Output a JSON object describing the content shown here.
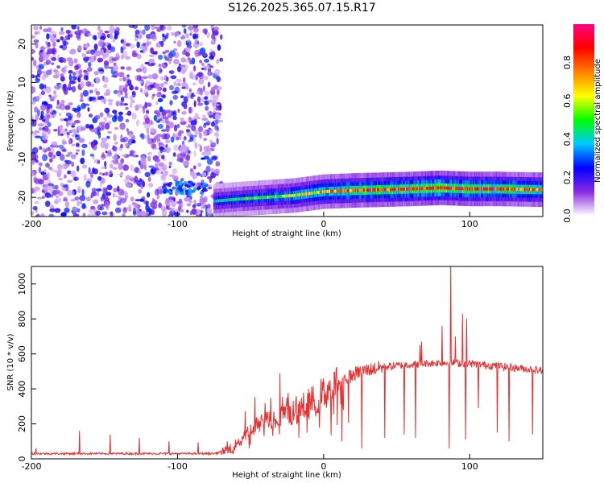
{
  "title": "S126.2025.365.07.15.R17",
  "chart_data": [
    {
      "type": "heatmap",
      "name": "spectrogram",
      "xlabel": "Height of straight line (km)",
      "ylabel": "Frequency (Hz)",
      "xlim": [
        -200,
        150
      ],
      "ylim": [
        -25,
        25
      ],
      "xticks": [
        -200,
        -100,
        0,
        100
      ],
      "xtick_labels": [
        "-200",
        "-100",
        "0",
        "100"
      ],
      "yticks": [
        20,
        10,
        0,
        -10,
        -20
      ],
      "ytick_labels": [
        "20",
        "10",
        "0",
        "-10",
        "-20"
      ],
      "colorbar": {
        "label": "Normalized spectral amplitude",
        "range": [
          0,
          1
        ],
        "ticks": [
          0.0,
          0.2,
          0.4,
          0.6,
          0.8
        ],
        "tick_labels": [
          "0.0",
          "0.2",
          "0.4",
          "0.6",
          "0.8"
        ],
        "stops": [
          "#ffffff",
          "#8a2be2",
          "#0000ff",
          "#00c8ff",
          "#00ff00",
          "#ffff00",
          "#ff8000",
          "#ff0000",
          "#ff0080"
        ]
      },
      "noise_region": {
        "x_range": [
          -200,
          -70
        ],
        "y_range": [
          -25,
          25
        ],
        "amplitude": [
          0.05,
          0.3
        ]
      },
      "signal_track": {
        "x": [
          -75,
          -60,
          -40,
          -20,
          0,
          20,
          40,
          60,
          80,
          100,
          120,
          150
        ],
        "freq_hz": [
          -21,
          -20.5,
          -20,
          -19.5,
          -18.5,
          -18.2,
          -18.0,
          -17.8,
          -17.5,
          -17.8,
          -17.8,
          -18.0
        ],
        "peak_amplitude": [
          0.4,
          0.45,
          0.5,
          0.6,
          0.7,
          0.8,
          0.8,
          0.85,
          0.9,
          0.85,
          0.8,
          0.75
        ]
      },
      "early_band": {
        "x_range": [
          -110,
          -80
        ],
        "freq_hz": -17.5,
        "amplitude": 0.3
      }
    },
    {
      "type": "line",
      "name": "snr",
      "xlabel": "Height of straight line (km)",
      "ylabel": "SNR (10 * v/v)",
      "xlim": [
        -200,
        150
      ],
      "ylim": [
        0,
        1100
      ],
      "xticks": [
        -200,
        -100,
        0,
        100
      ],
      "xtick_labels": [
        "-200",
        "-100",
        "0",
        "100"
      ],
      "yticks": [
        0,
        200,
        400,
        600,
        800,
        1000
      ],
      "ytick_labels": [
        "0",
        "200",
        "400",
        "600",
        "800",
        "1000"
      ],
      "color": "#e83030",
      "baseline": {
        "x": [
          -200,
          -150,
          -100,
          -75,
          -65,
          -55,
          -45,
          -35,
          -25,
          -15,
          -5,
          5,
          15,
          25,
          40,
          60,
          80,
          100,
          120,
          150
        ],
        "y": [
          30,
          30,
          30,
          30,
          50,
          120,
          200,
          230,
          260,
          290,
          340,
          410,
          460,
          500,
          525,
          540,
          550,
          545,
          530,
          505
        ]
      },
      "spikes": [
        {
          "x": -197,
          "y": 60
        },
        {
          "x": -167,
          "y": 160
        },
        {
          "x": -146,
          "y": 140
        },
        {
          "x": -126,
          "y": 120
        },
        {
          "x": -106,
          "y": 100
        },
        {
          "x": -86,
          "y": 95
        },
        {
          "x": -66,
          "y": 100
        },
        {
          "x": -40,
          "y": 320
        },
        {
          "x": -30,
          "y": 490
        },
        {
          "x": 63,
          "y": 700
        },
        {
          "x": 66,
          "y": 650
        },
        {
          "x": 67,
          "y": 670
        },
        {
          "x": 81,
          "y": 760
        },
        {
          "x": 87,
          "y": 1120
        },
        {
          "x": 95,
          "y": 830
        },
        {
          "x": 98,
          "y": 800
        },
        {
          "x": 90,
          "y": 700
        }
      ],
      "dips": [
        {
          "x": 26,
          "y": 60
        },
        {
          "x": 42,
          "y": 120
        },
        {
          "x": 55,
          "y": 140
        },
        {
          "x": 63,
          "y": 120
        },
        {
          "x": 86,
          "y": 60
        },
        {
          "x": 97,
          "y": 110
        },
        {
          "x": 106,
          "y": 290
        },
        {
          "x": 119,
          "y": 150
        },
        {
          "x": 127,
          "y": 100
        },
        {
          "x": 143,
          "y": 140
        }
      ]
    }
  ]
}
